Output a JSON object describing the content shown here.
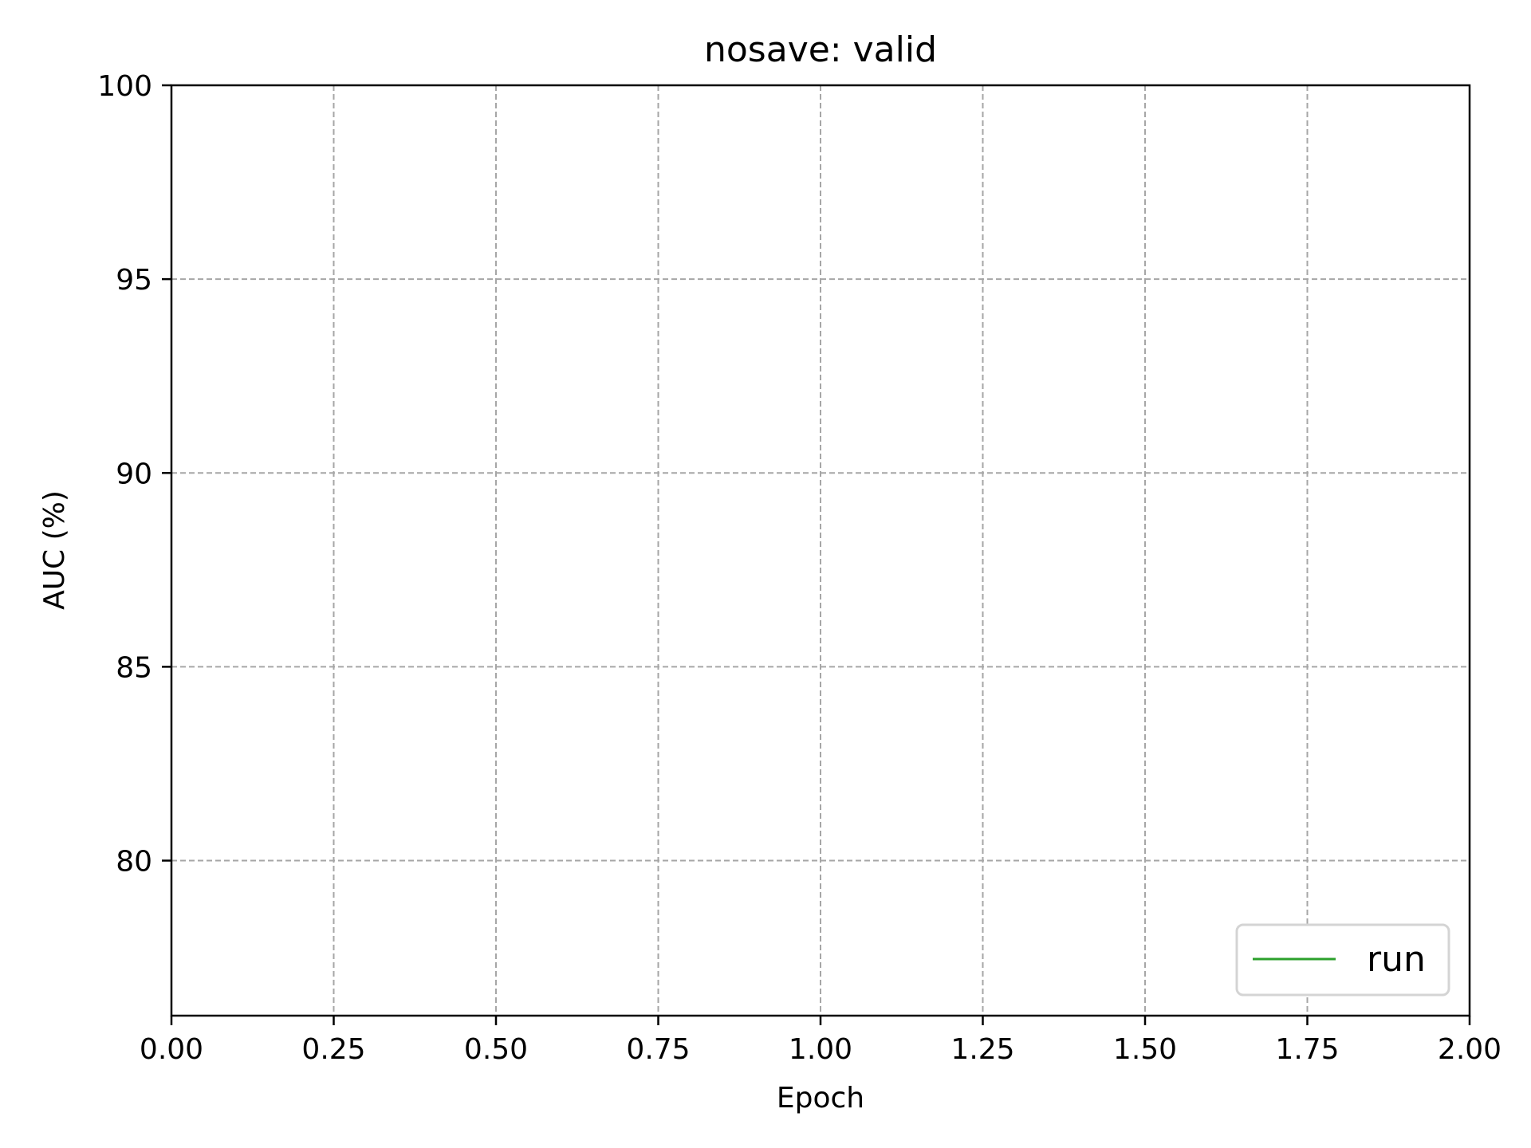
{
  "chart_data": {
    "type": "line",
    "title": "nosave: valid",
    "xlabel": "Epoch",
    "ylabel": "AUC (%)",
    "xlim": [
      0.0,
      2.0
    ],
    "ylim": [
      76.0,
      100.0
    ],
    "xticks": [
      0.0,
      0.25,
      0.5,
      0.75,
      1.0,
      1.25,
      1.5,
      1.75,
      2.0
    ],
    "xtick_labels": [
      "0.00",
      "0.25",
      "0.50",
      "0.75",
      "1.00",
      "1.25",
      "1.50",
      "1.75",
      "2.00"
    ],
    "yticks": [
      80,
      85,
      90,
      95,
      100
    ],
    "ytick_labels": [
      "80",
      "85",
      "90",
      "95",
      "100"
    ],
    "grid": true,
    "legend_position": "bottom-right",
    "series": [
      {
        "name": "run",
        "color": "#2ca02c",
        "x": [],
        "y": []
      }
    ]
  }
}
